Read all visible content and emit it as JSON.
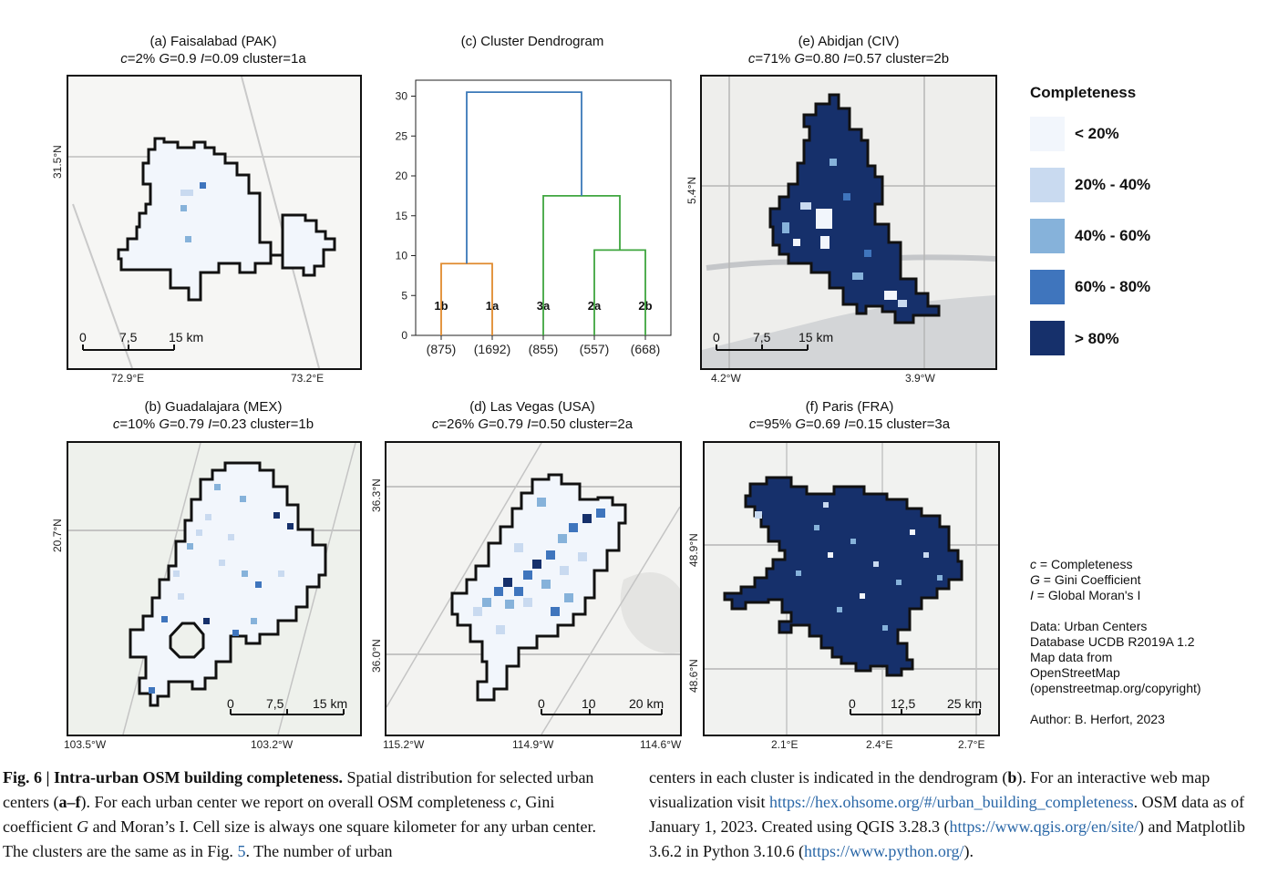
{
  "panels": {
    "a": {
      "title": "(a) Faisalabad (PAK)",
      "c": "c",
      "c_val": "=2% ",
      "g": "G",
      "g_val": "=0.9 ",
      "i": "I",
      "i_val": "=0.09 cluster=1a",
      "xticks": [
        "72.9°E",
        "73.2°E"
      ],
      "yticks": [
        "31.5°N"
      ],
      "scale": [
        "0",
        "7,5",
        "15 km"
      ]
    },
    "b": {
      "title": "(b) Guadalajara (MEX)",
      "c": "c",
      "c_val": "=10% ",
      "g": "G",
      "g_val": "=0.79 ",
      "i": "I",
      "i_val": "=0.23 cluster=1b",
      "xticks": [
        "103.5°W",
        "103.2°W"
      ],
      "yticks": [
        "20.7°N"
      ],
      "scale": [
        "0",
        "7,5",
        "15 km"
      ]
    },
    "c": {
      "title": "(c) Cluster Dendrogram"
    },
    "d": {
      "title": "(d) Las Vegas (USA)",
      "c": "c",
      "c_val": "=26% ",
      "g": "G",
      "g_val": "=0.79 ",
      "i": "I",
      "i_val": "=0.50 cluster=2a",
      "xticks": [
        "115.2°W",
        "114.9°W",
        "114.6°W"
      ],
      "yticks": [
        "36.3°N",
        "36.0°N"
      ],
      "scale": [
        "0",
        "10",
        "20 km"
      ]
    },
    "e": {
      "title": "(e) Abidjan (CIV)",
      "c": "c",
      "c_val": "=71% ",
      "g": "G",
      "g_val": "=0.80 ",
      "i": "I",
      "i_val": "=0.57 cluster=2b",
      "xticks": [
        "4.2°W",
        "3.9°W"
      ],
      "yticks": [
        "5.4°N"
      ],
      "scale": [
        "0",
        "7,5",
        "15 km"
      ]
    },
    "f": {
      "title": "(f) Paris (FRA)",
      "c": "c",
      "c_val": "=95% ",
      "g": "G",
      "g_val": "=0.69 ",
      "i": "I",
      "i_val": "=0.15 cluster=3a",
      "xticks": [
        "2.1°E",
        "2.4°E",
        "2.7°E"
      ],
      "yticks": [
        "48.9°N",
        "48.6°N"
      ],
      "scale": [
        "0",
        "12,5",
        "25 km"
      ]
    }
  },
  "chart_data": {
    "type": "dendrogram",
    "title": "(c) Cluster Dendrogram",
    "ylim": [
      0,
      32
    ],
    "yticks": [
      0,
      5,
      10,
      15,
      20,
      25,
      30
    ],
    "leaves": [
      {
        "label": "1b",
        "count": "(875)"
      },
      {
        "label": "1a",
        "count": "(1692)"
      },
      {
        "label": "3a",
        "count": "(855)"
      },
      {
        "label": "2a",
        "count": "(557)"
      },
      {
        "label": "2b",
        "count": "(668)"
      }
    ],
    "merges": [
      {
        "left": 0,
        "right": 1,
        "height": 9,
        "color": "#e08a2e"
      },
      {
        "left": 3,
        "right": 4,
        "height": 10.7,
        "color": "#3fa63f"
      },
      {
        "left": 2,
        "right": "2a+2b",
        "height": 17.5,
        "color": "#3fa63f"
      },
      {
        "left": "1b+1a",
        "right": "3a+2a+2b",
        "height": 30.5,
        "color": "#3b78b8"
      }
    ]
  },
  "legend": {
    "title": "Completeness",
    "items": [
      {
        "label": "< 20%",
        "color": "#f2f6fc"
      },
      {
        "label": "20% - 40%",
        "color": "#c9daf0"
      },
      {
        "label": "40% - 60%",
        "color": "#86b2da"
      },
      {
        "label": "60% - 80%",
        "color": "#3f75bd"
      },
      {
        "label": "> 80%",
        "color": "#16306b"
      }
    ]
  },
  "notes": {
    "c_sym": "c",
    "c_def": " = Completeness",
    "g_sym": "G",
    "g_def": " = Gini Coefficient",
    "i_sym": "I",
    "i_def": " = Global Moran's I",
    "data": [
      "Data: Urban Centers",
      "Database UCDB R2019A 1.2",
      "Map data from",
      "OpenStreetMap",
      "(openstreetmap.org/copyright)"
    ],
    "author": "Author: B. Herfort, 2023"
  },
  "caption": {
    "fig": "Fig. 6 | Intra-urban OSM building completeness.",
    "left_text": " Spatial distribution for selected urban centers (",
    "a_f": "a–f",
    "left_text2": "). For each urban center we report on overall OSM completeness ",
    "c": "c",
    "left_text3": ", Gini coefficient ",
    "g": "G",
    "left_text4": " and Moran’s I. Cell size is always one square kilometer for any urban center. The clusters are the same as in Fig. ",
    "fig5": "5",
    "left_text5": ". The number of urban",
    "right_text": "centers in each cluster is indicated in the dendrogram (",
    "b": "b",
    "right_text2": "). For an interactive web map visualization visit ",
    "link1": "https://hex.ohsome.org/#/urban_building_completeness",
    "right_text3": ". OSM data as of January 1, 2023. Created using QGIS 3.28.3 (",
    "link2": "https://www.qgis.org/en/site/",
    "right_text4": ") and Matplotlib 3.6.2 in Python 3.10.6 (",
    "link3": "https://www.python.org/",
    "right_text5": ")."
  }
}
